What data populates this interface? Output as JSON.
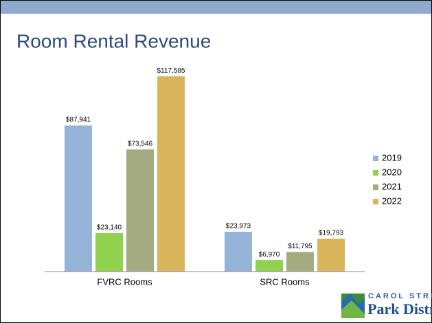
{
  "chart_data": {
    "type": "bar",
    "title": "Room Rental Revenue",
    "categories": [
      "FVRC Rooms",
      "SRC Rooms"
    ],
    "series": [
      {
        "name": "2019",
        "color": "#95b3d7",
        "values": [
          87941,
          23973
        ],
        "value_labels": [
          "$87,941",
          "$23,973"
        ]
      },
      {
        "name": "2020",
        "color": "#92d050",
        "values": [
          23140,
          6970
        ],
        "value_labels": [
          "$23,140",
          "$6,970"
        ]
      },
      {
        "name": "2021",
        "color": "#a4ab80",
        "values": [
          73546,
          11795
        ],
        "value_labels": [
          "$73,546",
          "$11,795"
        ]
      },
      {
        "name": "2022",
        "color": "#d9b45a",
        "values": [
          117585,
          19793
        ],
        "value_labels": [
          "$117,585",
          "$19,793"
        ]
      }
    ],
    "ylim": [
      0,
      140000
    ],
    "grid": false,
    "legend": "right"
  },
  "logo": {
    "line1": "CAROL STREAM",
    "line2": "Park District"
  }
}
